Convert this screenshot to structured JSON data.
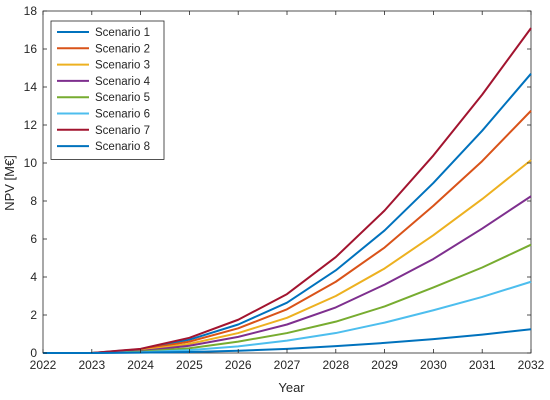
{
  "chart_data": {
    "type": "line",
    "xlabel": "Year",
    "ylabel": "NPV [M€]",
    "xlim": [
      2022,
      2032
    ],
    "ylim": [
      0,
      18
    ],
    "xticks": [
      "2022",
      "2023",
      "2024",
      "2025",
      "2026",
      "2027",
      "2028",
      "2029",
      "2030",
      "2031",
      "2032"
    ],
    "yticks": [
      "0",
      "2",
      "4",
      "6",
      "8",
      "10",
      "12",
      "14",
      "16",
      "18"
    ],
    "grid": false,
    "legend_position": "top-left",
    "x": [
      2022,
      2023,
      2024,
      2025,
      2026,
      2027,
      2028,
      2029,
      2030,
      2031,
      2032
    ],
    "series": [
      {
        "name": "Scenario 1",
        "color": "#0072BD",
        "values": [
          0,
          0,
          0.2,
          0.7,
          1.5,
          2.65,
          4.35,
          6.45,
          8.95,
          11.7,
          14.7
        ]
      },
      {
        "name": "Scenario 2",
        "color": "#D95319",
        "values": [
          0,
          0,
          0.17,
          0.6,
          1.3,
          2.3,
          3.75,
          5.55,
          7.75,
          10.1,
          12.75
        ]
      },
      {
        "name": "Scenario 3",
        "color": "#EDB120",
        "values": [
          0,
          0,
          0.13,
          0.48,
          1.05,
          1.85,
          3.0,
          4.45,
          6.2,
          8.1,
          10.15
        ]
      },
      {
        "name": "Scenario 4",
        "color": "#7E2F8E",
        "values": [
          0,
          0,
          0.1,
          0.38,
          0.85,
          1.5,
          2.4,
          3.6,
          4.95,
          6.55,
          8.25
        ]
      },
      {
        "name": "Scenario 5",
        "color": "#77AC30",
        "values": [
          0,
          0,
          0.07,
          0.25,
          0.6,
          1.05,
          1.65,
          2.45,
          3.45,
          4.5,
          5.7
        ]
      },
      {
        "name": "Scenario 6",
        "color": "#4DBEEE",
        "values": [
          0,
          0,
          0.04,
          0.15,
          0.35,
          0.65,
          1.05,
          1.6,
          2.25,
          2.95,
          3.75
        ]
      },
      {
        "name": "Scenario 7",
        "color": "#A2142F",
        "values": [
          0,
          0,
          0.22,
          0.8,
          1.75,
          3.1,
          5.05,
          7.5,
          10.4,
          13.6,
          17.1
        ]
      },
      {
        "name": "Scenario 8",
        "color": "#0072BD",
        "values": [
          0,
          0,
          0.02,
          0.05,
          0.12,
          0.22,
          0.36,
          0.53,
          0.73,
          0.97,
          1.25
        ]
      }
    ]
  }
}
